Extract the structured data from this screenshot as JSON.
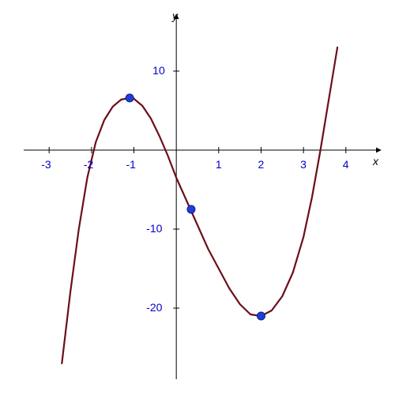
{
  "chart": {
    "type": "line",
    "background_color": "#ffffff",
    "axis_color": "#000000",
    "curve_color": "#6b0f1a",
    "curve_width": 2.2,
    "marker_fill": "#1f3fd8",
    "marker_stroke": "#0a1f8a",
    "marker_radius": 5,
    "tick_label_color": "#0000cc",
    "tick_label_fontsize": 14,
    "axis_label_color": "#000000",
    "axis_label_fontsize": 14,
    "xlim": [
      -3.6,
      4.6
    ],
    "ylim": [
      -28,
      16
    ],
    "xtick_labels": [
      "-3",
      "-2",
      "-1",
      "1",
      "2",
      "3",
      "4"
    ],
    "xtick_values": [
      -3,
      -2,
      -1,
      1,
      2,
      3,
      4
    ],
    "ytick_labels": [
      "10",
      "-10",
      "-20"
    ],
    "ytick_values": [
      10,
      -10,
      -20
    ],
    "x_axis_label": "x",
    "y_axis_label": "y",
    "curve_points": [
      {
        "x": -2.7,
        "y": -27.0
      },
      {
        "x": -2.5,
        "y": -18.0
      },
      {
        "x": -2.3,
        "y": -10.0
      },
      {
        "x": -2.1,
        "y": -3.5
      },
      {
        "x": -1.9,
        "y": 1.0
      },
      {
        "x": -1.7,
        "y": 3.8
      },
      {
        "x": -1.5,
        "y": 5.5
      },
      {
        "x": -1.3,
        "y": 6.4
      },
      {
        "x": -1.1,
        "y": 6.6
      },
      {
        "x": -1.0,
        "y": 6.5
      },
      {
        "x": -0.8,
        "y": 5.6
      },
      {
        "x": -0.6,
        "y": 4.0
      },
      {
        "x": -0.4,
        "y": 1.8
      },
      {
        "x": -0.2,
        "y": -0.7
      },
      {
        "x": 0.0,
        "y": -3.5
      },
      {
        "x": 0.25,
        "y": -6.5
      },
      {
        "x": 0.5,
        "y": -9.5
      },
      {
        "x": 0.75,
        "y": -12.5
      },
      {
        "x": 1.0,
        "y": -15.0
      },
      {
        "x": 1.25,
        "y": -17.5
      },
      {
        "x": 1.5,
        "y": -19.5
      },
      {
        "x": 1.75,
        "y": -20.8
      },
      {
        "x": 2.0,
        "y": -21.0
      },
      {
        "x": 2.25,
        "y": -20.3
      },
      {
        "x": 2.5,
        "y": -18.5
      },
      {
        "x": 2.75,
        "y": -15.5
      },
      {
        "x": 3.0,
        "y": -11.0
      },
      {
        "x": 3.2,
        "y": -6.0
      },
      {
        "x": 3.4,
        "y": 0.0
      },
      {
        "x": 3.6,
        "y": 6.5
      },
      {
        "x": 3.8,
        "y": 13.0
      }
    ],
    "markers": [
      {
        "x": -1.1,
        "y": 6.6
      },
      {
        "x": 0.35,
        "y": -7.5
      },
      {
        "x": 2.0,
        "y": -21.0
      }
    ]
  }
}
